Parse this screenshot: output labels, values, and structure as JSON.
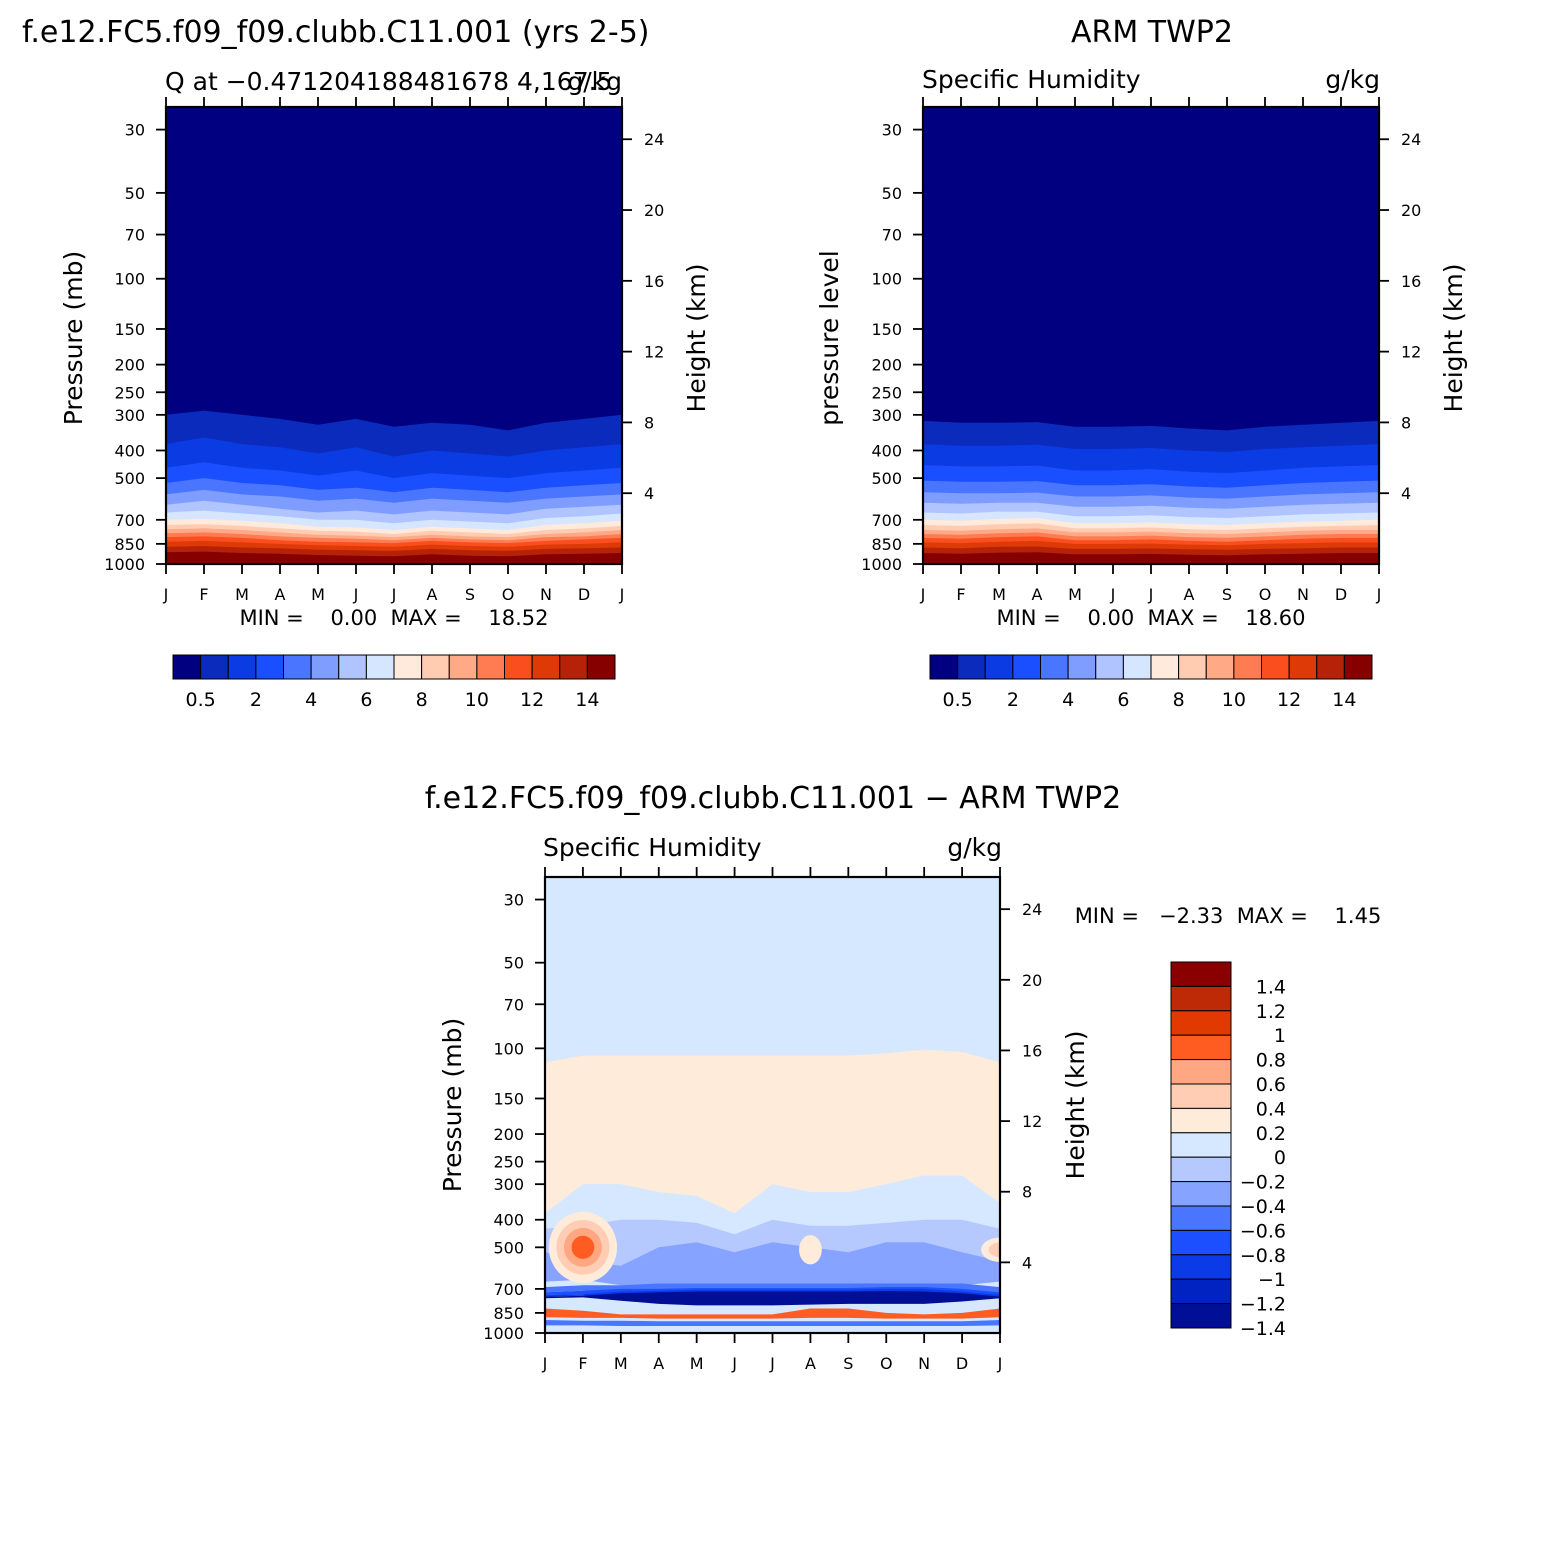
{
  "colors": {
    "abs": [
      "#000080",
      "#0a2bbc",
      "#0b3be3",
      "#1a4fff",
      "#4a76ff",
      "#7f9dff",
      "#b0c4ff",
      "#d6e6ff",
      "#ffeadb",
      "#ffccb2",
      "#ffa987",
      "#ff7b51",
      "#fb4e1e",
      "#de3a07",
      "#b62208",
      "#870000"
    ],
    "diff": [
      "#000f96",
      "#0023c2",
      "#0b3be6",
      "#1b4fff",
      "#4a76ff",
      "#86a3ff",
      "#b5c9ff",
      "#d6e8ff",
      "#ffebda",
      "#ffcdb4",
      "#ffa782",
      "#ff5c22",
      "#e03a00",
      "#bd2a05",
      "#8a0000"
    ]
  },
  "panels": [
    {
      "header": "f.e12.FC5.f09_f09.clubb.C11.001 (yrs 2-5)",
      "left_label": "Q at −0.471204188481678 4,167.5",
      "right_label": "g/kg",
      "ylabel": "Pressure (mb)",
      "y2label": "Height (km)",
      "minmax": "MIN =    0.00  MAX =    18.52",
      "colorbar_labels": [
        "0.5",
        "2",
        "4",
        "6",
        "8",
        "10",
        "12",
        "14"
      ]
    },
    {
      "header": "ARM TWP2",
      "left_label": "Specific Humidity",
      "right_label": "g/kg",
      "ylabel": "pressure level",
      "y2label": "Height (km)",
      "minmax": "MIN =    0.00  MAX =    18.60",
      "colorbar_labels": [
        "0.5",
        "2",
        "4",
        "6",
        "8",
        "10",
        "12",
        "14"
      ]
    },
    {
      "header": "f.e12.FC5.f09_f09.clubb.C11.001 − ARM TWP2",
      "left_label": "Specific Humidity",
      "right_label": "g/kg",
      "ylabel": "Pressure (mb)",
      "y2label": "Height (km)",
      "minmax": "MIN =   −2.33  MAX =    1.45",
      "colorbar_labels": [
        "1.4",
        "1.2",
        "1",
        "0.8",
        "0.6",
        "0.4",
        "0.2",
        "0",
        "−0.2",
        "−0.4",
        "−0.6",
        "−0.8",
        "−1",
        "−1.2",
        "−1.4"
      ]
    }
  ],
  "chart_data": [
    {
      "type": "heatmap",
      "title": "f.e12.FC5.f09_f09.clubb.C11.001 (yrs 2-5)",
      "ylabel": "Pressure (mb)",
      "y2label": "Height (km)",
      "x_ticks": [
        "J",
        "F",
        "M",
        "A",
        "M",
        "J",
        "J",
        "A",
        "S",
        "O",
        "N",
        "D",
        "J"
      ],
      "p_ticks": [
        30,
        50,
        70,
        100,
        150,
        200,
        250,
        300,
        400,
        500,
        700,
        850,
        1000
      ],
      "height_ticks": [
        4,
        8,
        12,
        16,
        20,
        24
      ],
      "ylim": [
        1000,
        25
      ],
      "levels": [
        0.5,
        1,
        2,
        3,
        4,
        5,
        6,
        7,
        8,
        9,
        10,
        11,
        12,
        13,
        14
      ],
      "contours_p": [
        [
          300,
          290,
          300,
          310,
          325,
          310,
          330,
          320,
          325,
          340,
          320,
          310,
          300
        ],
        [
          380,
          360,
          380,
          390,
          410,
          390,
          420,
          400,
          410,
          420,
          400,
          390,
          380
        ],
        [
          460,
          440,
          460,
          470,
          490,
          470,
          500,
          480,
          490,
          500,
          480,
          470,
          460
        ],
        [
          520,
          500,
          520,
          530,
          550,
          540,
          560,
          540,
          550,
          560,
          540,
          530,
          520
        ],
        [
          570,
          550,
          570,
          580,
          600,
          590,
          610,
          590,
          600,
          610,
          590,
          580,
          570
        ],
        [
          620,
          600,
          620,
          640,
          660,
          650,
          670,
          650,
          660,
          670,
          640,
          630,
          620
        ],
        [
          660,
          650,
          665,
          680,
          700,
          700,
          720,
          700,
          710,
          720,
          690,
          680,
          665
        ],
        [
          700,
          695,
          705,
          720,
          740,
          745,
          760,
          740,
          750,
          760,
          730,
          720,
          705
        ],
        [
          730,
          725,
          735,
          750,
          765,
          770,
          785,
          765,
          775,
          785,
          760,
          750,
          735
        ],
        [
          755,
          750,
          760,
          775,
          790,
          795,
          805,
          790,
          800,
          805,
          785,
          775,
          760
        ],
        [
          780,
          775,
          785,
          800,
          810,
          815,
          825,
          810,
          820,
          825,
          805,
          800,
          785
        ],
        [
          805,
          800,
          810,
          825,
          835,
          840,
          845,
          830,
          840,
          845,
          830,
          820,
          810
        ],
        [
          835,
          830,
          840,
          850,
          860,
          865,
          870,
          855,
          865,
          870,
          855,
          850,
          840
        ],
        [
          870,
          865,
          875,
          880,
          890,
          895,
          900,
          885,
          895,
          900,
          885,
          880,
          875
        ],
        [
          910,
          905,
          915,
          920,
          930,
          935,
          940,
          925,
          935,
          940,
          925,
          920,
          915
        ]
      ],
      "min": 0.0,
      "max": 18.52
    },
    {
      "type": "heatmap",
      "title": "ARM TWP2",
      "ylabel": "pressure level",
      "y2label": "Height (km)",
      "x_ticks": [
        "J",
        "F",
        "M",
        "A",
        "M",
        "J",
        "J",
        "A",
        "S",
        "O",
        "N",
        "D",
        "J"
      ],
      "p_ticks": [
        30,
        50,
        70,
        100,
        150,
        200,
        250,
        300,
        400,
        500,
        700,
        850,
        1000
      ],
      "height_ticks": [
        4,
        8,
        12,
        16,
        20,
        24
      ],
      "ylim": [
        1000,
        25
      ],
      "levels": [
        0.5,
        1,
        2,
        3,
        4,
        5,
        6,
        7,
        8,
        9,
        10,
        11,
        12,
        13,
        14
      ],
      "contours_p": [
        [
          315,
          320,
          320,
          318,
          330,
          330,
          328,
          335,
          340,
          330,
          325,
          320,
          315
        ],
        [
          380,
          385,
          385,
          382,
          395,
          395,
          392,
          400,
          405,
          395,
          390,
          385,
          380
        ],
        [
          450,
          455,
          455,
          452,
          470,
          470,
          465,
          475,
          480,
          470,
          460,
          455,
          450
        ],
        [
          510,
          515,
          515,
          512,
          530,
          530,
          525,
          535,
          540,
          530,
          520,
          515,
          510
        ],
        [
          560,
          565,
          565,
          562,
          580,
          580,
          575,
          585,
          590,
          580,
          570,
          565,
          560
        ],
        [
          610,
          615,
          610,
          610,
          630,
          630,
          625,
          635,
          640,
          630,
          620,
          615,
          610
        ],
        [
          660,
          665,
          655,
          655,
          680,
          680,
          675,
          685,
          690,
          680,
          670,
          665,
          660
        ],
        [
          700,
          705,
          695,
          690,
          720,
          720,
          715,
          725,
          730,
          720,
          710,
          705,
          700
        ],
        [
          730,
          735,
          725,
          720,
          750,
          750,
          745,
          755,
          760,
          750,
          740,
          735,
          730
        ],
        [
          760,
          765,
          755,
          750,
          775,
          775,
          770,
          780,
          785,
          775,
          765,
          760,
          760
        ],
        [
          785,
          790,
          780,
          775,
          800,
          800,
          795,
          805,
          810,
          800,
          790,
          785,
          785
        ],
        [
          810,
          815,
          805,
          800,
          825,
          825,
          820,
          830,
          835,
          825,
          815,
          810,
          810
        ],
        [
          840,
          845,
          835,
          830,
          850,
          850,
          848,
          855,
          860,
          850,
          845,
          840,
          840
        ],
        [
          875,
          880,
          870,
          868,
          885,
          885,
          882,
          888,
          892,
          885,
          880,
          875,
          875
        ],
        [
          915,
          920,
          912,
          910,
          925,
          925,
          922,
          928,
          932,
          925,
          920,
          915,
          915
        ]
      ],
      "min": 0.0,
      "max": 18.6
    },
    {
      "type": "heatmap",
      "title": "f.e12.FC5.f09_f09.clubb.C11.001 − ARM TWP2",
      "ylabel": "Pressure (mb)",
      "y2label": "Height (km)",
      "x_ticks": [
        "J",
        "F",
        "M",
        "A",
        "M",
        "J",
        "J",
        "A",
        "S",
        "O",
        "N",
        "D",
        "J"
      ],
      "p_ticks": [
        30,
        50,
        70,
        100,
        150,
        200,
        250,
        300,
        400,
        500,
        700,
        850,
        1000
      ],
      "height_ticks": [
        4,
        8,
        12,
        16,
        20,
        24
      ],
      "ylim": [
        1000,
        25
      ],
      "levels": [
        -1.4,
        -1.2,
        -1,
        -0.8,
        -0.6,
        -0.4,
        -0.2,
        0,
        0.2,
        0.4,
        0.6,
        0.8,
        1,
        1.2,
        1.4
      ],
      "bands": [
        {
          "label": "upper -0.2 to 0",
          "top_p": [
            25,
            25,
            25,
            25,
            25,
            25,
            25,
            25,
            25,
            25,
            25,
            25,
            25
          ],
          "bot_p": [
            112,
            106,
            106,
            106,
            106,
            106,
            106,
            106,
            106,
            104,
            101,
            103,
            112
          ],
          "color_index": 7
        },
        {
          "label": "0 to 0.2",
          "top_p": [
            112,
            106,
            106,
            106,
            106,
            106,
            106,
            106,
            106,
            104,
            101,
            103,
            112
          ],
          "bot_p": [
            380,
            300,
            300,
            320,
            330,
            380,
            300,
            320,
            320,
            300,
            280,
            280,
            350
          ],
          "color_index": 8
        },
        {
          "label": "-0.2 to 0 mid",
          "top_p": [
            380,
            300,
            300,
            320,
            330,
            380,
            300,
            320,
            320,
            300,
            280,
            280,
            350
          ],
          "bot_p": [
            560,
            600,
            620,
            650,
            650,
            640,
            650,
            650,
            650,
            660,
            640,
            610,
            560
          ],
          "color_index": 7
        },
        {
          "label": "-0.4",
          "top_p": [
            430,
            420,
            400,
            400,
            410,
            450,
            400,
            420,
            420,
            410,
            400,
            400,
            430
          ],
          "bot_p": [
            620,
            620,
            650,
            680,
            690,
            680,
            680,
            680,
            680,
            690,
            680,
            650,
            620
          ],
          "color_index": 6
        },
        {
          "label": "-0.6",
          "top_p": [
            520,
            560,
            580,
            500,
            480,
            520,
            480,
            500,
            520,
            480,
            480,
            520,
            560
          ],
          "bot_p": [
            660,
            650,
            680,
            700,
            710,
            700,
            700,
            700,
            700,
            705,
            700,
            680,
            660
          ],
          "color_index": 5
        },
        {
          "label": "-0.8",
          "top_p": [
            690,
            680,
            680,
            670,
            670,
            670,
            670,
            670,
            670,
            670,
            670,
            670,
            690
          ],
          "bot_p": [
            720,
            710,
            720,
            730,
            735,
            735,
            735,
            735,
            735,
            735,
            735,
            725,
            720
          ],
          "color_index": 4
        },
        {
          "label": "-1",
          "top_p": [
            720,
            710,
            700,
            700,
            695,
            695,
            695,
            695,
            695,
            690,
            690,
            700,
            720
          ],
          "bot_p": [
            735,
            730,
            740,
            750,
            755,
            758,
            760,
            758,
            755,
            755,
            755,
            745,
            735
          ],
          "color_index": 3
        },
        {
          "label": "-1.2",
          "top_p": [
            735,
            730,
            715,
            710,
            705,
            705,
            705,
            705,
            705,
            700,
            700,
            715,
            735
          ],
          "bot_p": [
            745,
            740,
            755,
            770,
            775,
            778,
            778,
            775,
            772,
            772,
            772,
            760,
            745
          ],
          "color_index": 2
        },
        {
          "label": "-1.4",
          "top_p": [
            745,
            740,
            725,
            720,
            715,
            715,
            715,
            715,
            715,
            712,
            715,
            725,
            745
          ],
          "bot_p": [
            755,
            750,
            770,
            790,
            800,
            800,
            800,
            795,
            790,
            790,
            790,
            775,
            755
          ],
          "color_index": 0
        },
        {
          "label": "near-surface positive",
          "top_p": [
            820,
            835,
            860,
            860,
            860,
            860,
            860,
            820,
            820,
            850,
            860,
            850,
            820
          ],
          "bot_p": [
            880,
            885,
            885,
            890,
            890,
            890,
            890,
            885,
            885,
            890,
            890,
            890,
            880
          ],
          "color_index": 11
        },
        {
          "label": "surface negative",
          "top_p": [
            900,
            905,
            905,
            910,
            910,
            910,
            910,
            910,
            910,
            910,
            910,
            910,
            900
          ],
          "bot_p": [
            940,
            940,
            945,
            945,
            945,
            945,
            945,
            945,
            945,
            945,
            945,
            945,
            940
          ],
          "color_index": 4
        }
      ],
      "blobs": [
        {
          "label": "positive lobe near Feb",
          "month": 1.0,
          "p": 500,
          "half_width_months": 0.9,
          "half_height_mb": 140,
          "levels_color_index": [
            8,
            9,
            10,
            11
          ]
        },
        {
          "label": "positive Aug",
          "month": 7.0,
          "p": 510,
          "half_width_months": 0.3,
          "half_height_mb": 60,
          "levels_color_index": [
            8
          ]
        },
        {
          "label": "positive near Dec",
          "month": 12.0,
          "p": 510,
          "half_width_months": 0.5,
          "half_height_mb": 50,
          "levels_color_index": [
            8,
            9
          ]
        }
      ],
      "min": -2.33,
      "max": 1.45
    }
  ]
}
